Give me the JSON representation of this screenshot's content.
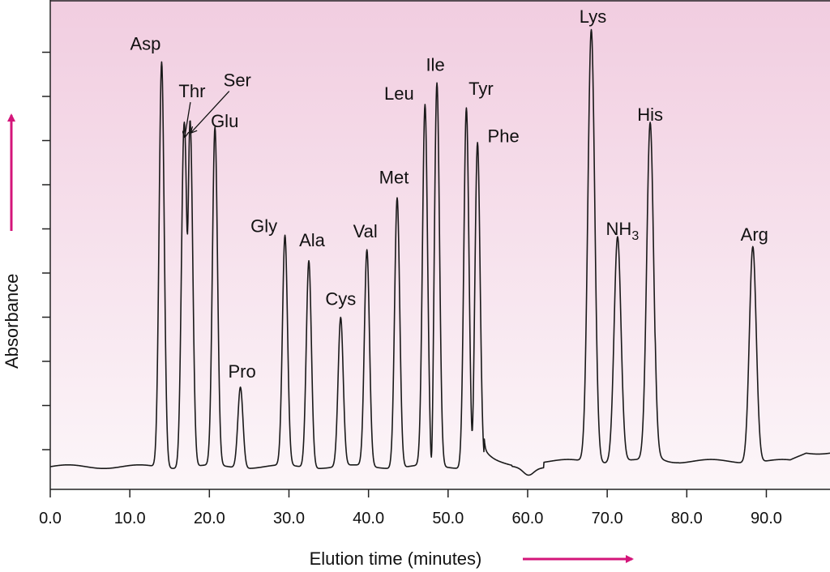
{
  "chart_data": {
    "type": "line",
    "title": "",
    "xlabel": "Elution time (minutes)",
    "ylabel": "Absorbance",
    "xlim": [
      0,
      98
    ],
    "xticks": [
      "0.0",
      "10.0",
      "20.0",
      "30.0",
      "40.0",
      "50.0",
      "60.0",
      "70.0",
      "80.0",
      "90.0"
    ],
    "y_tick_count": 10,
    "grid": false,
    "background": "pink gradient",
    "colors": {
      "gradient_top": "#f1cde0",
      "gradient_bottom": "#fcf6f9",
      "trace": "#1a1a1a",
      "arrow": "#d4157a"
    },
    "peaks": [
      {
        "label": "Asp",
        "x": 14.0,
        "height": 0.9
      },
      {
        "label": "Thr",
        "x": 16.8,
        "height": 0.73
      },
      {
        "label": "Ser",
        "x": 17.6,
        "height": 0.74
      },
      {
        "label": "Glu",
        "x": 20.7,
        "height": 0.75
      },
      {
        "label": "Pro",
        "x": 23.9,
        "height": 0.18
      },
      {
        "label": "Gly",
        "x": 29.5,
        "height": 0.51
      },
      {
        "label": "Ala",
        "x": 32.5,
        "height": 0.46
      },
      {
        "label": "Cys",
        "x": 36.5,
        "height": 0.33
      },
      {
        "label": "Val",
        "x": 39.8,
        "height": 0.48
      },
      {
        "label": "Met",
        "x": 43.6,
        "height": 0.6
      },
      {
        "label": "Leu",
        "x": 47.1,
        "height": 0.8
      },
      {
        "label": "Ile",
        "x": 48.6,
        "height": 0.85
      },
      {
        "label": "Tyr",
        "x": 52.3,
        "height": 0.8
      },
      {
        "label": "Phe",
        "x": 53.7,
        "height": 0.72
      },
      {
        "label": "Lys",
        "x": 68.0,
        "height": 0.96
      },
      {
        "label": "NH3",
        "x": 71.3,
        "height": 0.5
      },
      {
        "label": "His",
        "x": 75.4,
        "height": 0.75
      },
      {
        "label": "Arg",
        "x": 88.3,
        "height": 0.48
      }
    ]
  }
}
